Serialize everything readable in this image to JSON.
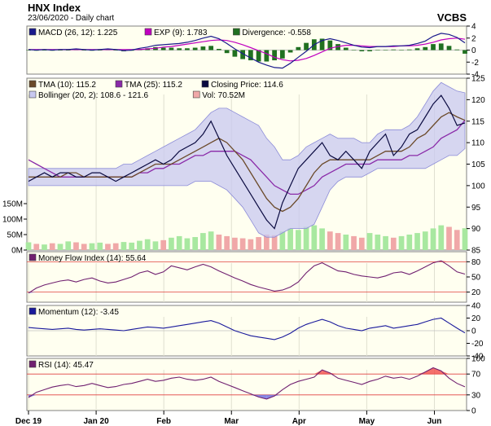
{
  "header": {
    "title": "HNX Index",
    "subtitle": "23/06/2020 - Daily chart",
    "vendor": "VCBS"
  },
  "colors": {
    "panel_bg": "#fffff0",
    "border": "#808080",
    "macd": "#1a1a8c",
    "exp": "#c000c0",
    "divergence": "#207020",
    "tma10": "#6b4a2a",
    "tma25": "#8a2aa8",
    "close": "#0a0a40",
    "bollinger_fill": "#c8c8f0",
    "bollinger_line": "#8c8cd8",
    "vol_up": "#a8e8a0",
    "vol_down": "#f0a8a8",
    "mfi": "#702070",
    "momentum": "#1a1a9c",
    "rsi": "#702070",
    "ref_line": "#e04040",
    "over_fill": "#f04040",
    "under_fill": "#6060e0"
  },
  "x_ticks": [
    "Dec 19",
    "Jan 20",
    "Feb",
    "Mar",
    "Apr",
    "May",
    "Jun"
  ],
  "chart_data": [
    {
      "type": "line",
      "name": "macd",
      "legend": [
        {
          "label": "MACD (26, 12): 1.225",
          "color": "#1a1a8c"
        },
        {
          "label": "EXP (9): 1.783",
          "color": "#c000c0"
        },
        {
          "label": "Divergence: -0.558",
          "color": "#207020"
        }
      ],
      "y_ticks": [
        "4",
        "2",
        "0",
        "-2",
        "-4"
      ],
      "ylim": [
        -4,
        4
      ],
      "series": [
        {
          "name": "MACD",
          "values": [
            0.1,
            0,
            0.1,
            0,
            0.1,
            0.1,
            0.2,
            0.1,
            0,
            0.1,
            0.2,
            0.1,
            -0.1,
            0,
            0.3,
            0.5,
            0.8,
            0.9,
            1,
            1.1,
            1.3,
            1.6,
            2,
            2.3,
            1.9,
            1.1,
            0.2,
            -0.6,
            -1.3,
            -2,
            -2.5,
            -2.9,
            -3,
            -2.2,
            -1.2,
            -0.2,
            0.9,
            1.6,
            1.9,
            1.6,
            1.2,
            0.8,
            0.5,
            0.4,
            0.6,
            0.6,
            0.7,
            0.7,
            0.8,
            1.1,
            1.5,
            2.3,
            2.8,
            2.6,
            2.1,
            1.2
          ]
        },
        {
          "name": "EXP",
          "values": [
            0.1,
            0.1,
            0.1,
            0.1,
            0.1,
            0.1,
            0.1,
            0.1,
            0.1,
            0.1,
            0.1,
            0.1,
            0.1,
            0.1,
            0.1,
            0.2,
            0.3,
            0.5,
            0.6,
            0.8,
            1,
            1.2,
            1.4,
            1.6,
            1.7,
            1.6,
            1.3,
            0.9,
            0.4,
            -0.1,
            -0.6,
            -1.2,
            -1.6,
            -1.8,
            -1.7,
            -1.4,
            -0.9,
            -0.3,
            0.3,
            0.6,
            0.8,
            0.8,
            0.7,
            0.6,
            0.6,
            0.6,
            0.6,
            0.7,
            0.7,
            0.8,
            1,
            1.3,
            1.7,
            1.9,
            2,
            1.8
          ]
        }
      ],
      "divergence": [
        0,
        -0.1,
        0,
        -0.1,
        0,
        0,
        0.1,
        0,
        -0.1,
        0,
        0.1,
        0,
        -0.2,
        -0.1,
        0.2,
        0.3,
        0.5,
        0.4,
        0.4,
        0.3,
        0.3,
        0.4,
        0.6,
        0.7,
        0.2,
        -0.5,
        -1.1,
        -1.5,
        -1.7,
        -1.9,
        -1.9,
        -1.7,
        -1.4,
        -0.4,
        0.5,
        1.2,
        1.8,
        1.9,
        1.6,
        1,
        0.4,
        0,
        -0.2,
        -0.2,
        0,
        0,
        0.1,
        0,
        0.1,
        0.3,
        0.5,
        1,
        1.1,
        0.7,
        0.1,
        -0.6
      ]
    },
    {
      "type": "line",
      "name": "price",
      "legend": [
        {
          "label": "TMA (10): 115.2",
          "color": "#6b4a2a"
        },
        {
          "label": "TMA (25): 115.2",
          "color": "#8a2aa8"
        },
        {
          "label": "Closing Price: 114.6",
          "color": "#0a0a40"
        },
        {
          "label": "Bollinger (20, 2): 108.6 - 121.6",
          "color": "#c8c8f0"
        },
        {
          "label": "Vol: 70.52M",
          "color": "#f0a8a8"
        }
      ],
      "y_ticks": [
        "125",
        "120",
        "115",
        "110",
        "105",
        "100",
        "95",
        "90",
        "85"
      ],
      "ylim": [
        85,
        125
      ],
      "vol_ticks": [
        "150M",
        "100M",
        "50M",
        "0M"
      ],
      "vol_max": 150,
      "series": [
        {
          "name": "Close",
          "values": [
            101,
            102,
            103,
            102,
            103,
            103,
            102,
            102,
            103,
            103,
            102,
            101,
            102,
            103,
            104,
            105,
            106,
            105,
            106,
            108,
            109,
            110,
            112,
            115,
            111,
            107,
            104,
            101,
            98,
            95,
            92,
            90,
            96,
            100,
            104,
            106,
            108,
            110,
            107,
            106,
            108,
            106,
            104,
            108,
            110,
            112,
            107,
            109,
            112,
            113,
            116,
            119,
            121,
            118,
            114,
            114.6
          ]
        },
        {
          "name": "TMA10",
          "values": [
            102,
            102,
            102,
            102,
            102,
            103,
            103,
            102,
            102,
            102,
            102,
            102,
            102,
            102,
            103,
            104,
            105,
            105,
            105,
            106,
            107,
            108,
            109,
            110,
            111,
            110,
            108,
            106,
            103,
            100,
            97,
            95,
            94,
            95,
            97,
            100,
            103,
            105,
            106,
            106,
            106,
            106,
            106,
            106,
            107,
            108,
            108,
            108,
            109,
            111,
            112,
            114,
            116,
            117,
            116,
            115.2
          ]
        },
        {
          "name": "TMA25",
          "values": [
            106,
            105,
            104,
            103,
            102,
            102,
            102,
            102,
            102,
            102,
            102,
            102,
            102,
            102,
            103,
            103,
            104,
            104,
            105,
            105,
            106,
            107,
            107,
            108,
            108,
            108,
            108,
            107,
            106,
            104,
            102,
            100,
            99,
            98,
            98,
            99,
            100,
            102,
            103,
            104,
            105,
            105,
            105,
            105,
            106,
            106,
            106,
            106,
            107,
            107,
            108,
            109,
            111,
            112,
            113,
            115.2
          ]
        },
        {
          "name": "BollUpper",
          "values": [
            104,
            104,
            104,
            104,
            104,
            104,
            104,
            104,
            104,
            104,
            104,
            104,
            105,
            105,
            106,
            107,
            108,
            109,
            110,
            111,
            112,
            113,
            115,
            117,
            118,
            118,
            117,
            116,
            115,
            114,
            111,
            109,
            106,
            106,
            107,
            109,
            110,
            111,
            112,
            111,
            111,
            111,
            110,
            110,
            112,
            113,
            113,
            113,
            114,
            116,
            119,
            122,
            124,
            123,
            122,
            121.6
          ]
        },
        {
          "name": "BollLower",
          "values": [
            100,
            100,
            100,
            100,
            100,
            100,
            100,
            100,
            100,
            100,
            100,
            100,
            100,
            100,
            100,
            100,
            100,
            100,
            100,
            100,
            100,
            101,
            101,
            101,
            100,
            99,
            97,
            95,
            92,
            89,
            88,
            88,
            89,
            90,
            90,
            90,
            91,
            95,
            99,
            101,
            102,
            102,
            102,
            103,
            104,
            104,
            104,
            104,
            104,
            104,
            104,
            105,
            106,
            107,
            107,
            108.6
          ]
        }
      ],
      "volume": [
        25,
        20,
        18,
        22,
        20,
        28,
        25,
        20,
        22,
        24,
        20,
        22,
        26,
        24,
        30,
        35,
        28,
        32,
        40,
        45,
        38,
        42,
        55,
        60,
        50,
        45,
        40,
        38,
        35,
        42,
        50,
        48,
        60,
        70,
        65,
        75,
        80,
        70,
        60,
        55,
        50,
        45,
        40,
        55,
        50,
        45,
        40,
        45,
        50,
        55,
        60,
        70,
        80,
        75,
        65,
        70.52
      ],
      "volume_up": [
        1,
        0,
        1,
        0,
        1,
        1,
        0,
        0,
        1,
        1,
        0,
        0,
        1,
        1,
        1,
        1,
        1,
        0,
        1,
        1,
        1,
        1,
        1,
        1,
        0,
        0,
        0,
        0,
        0,
        0,
        0,
        0,
        1,
        1,
        1,
        1,
        1,
        1,
        0,
        0,
        1,
        0,
        0,
        1,
        1,
        1,
        0,
        1,
        1,
        1,
        1,
        1,
        1,
        0,
        0,
        1
      ]
    },
    {
      "type": "line",
      "name": "mfi",
      "legend": [
        {
          "label": "Money Flow Index (14): 55.64",
          "color": "#702070"
        }
      ],
      "y_ticks": [
        "80",
        "50",
        "20"
      ],
      "ylim": [
        0,
        100
      ],
      "ref_lines": [
        80,
        20
      ],
      "values": [
        18,
        28,
        34,
        38,
        42,
        44,
        40,
        45,
        48,
        42,
        38,
        40,
        45,
        50,
        58,
        62,
        55,
        60,
        72,
        68,
        64,
        70,
        75,
        70,
        62,
        55,
        48,
        42,
        35,
        30,
        26,
        22,
        24,
        30,
        40,
        58,
        72,
        78,
        70,
        62,
        60,
        55,
        52,
        50,
        48,
        52,
        58,
        60,
        55,
        62,
        70,
        78,
        82,
        72,
        60,
        55.64
      ]
    },
    {
      "type": "line",
      "name": "momentum",
      "legend": [
        {
          "label": "Momentum (12): -3.45",
          "color": "#1a1a9c"
        }
      ],
      "y_ticks": [
        "40",
        "20",
        "0",
        "-20",
        "-40"
      ],
      "ylim": [
        -40,
        40
      ],
      "values": [
        5,
        4,
        3,
        2,
        3,
        4,
        2,
        1,
        2,
        3,
        2,
        1,
        0,
        2,
        4,
        6,
        5,
        4,
        6,
        8,
        10,
        12,
        14,
        16,
        12,
        6,
        0,
        -4,
        -8,
        -10,
        -12,
        -14,
        -10,
        -4,
        4,
        10,
        14,
        18,
        14,
        8,
        4,
        2,
        0,
        4,
        6,
        8,
        4,
        6,
        8,
        10,
        14,
        18,
        20,
        12,
        4,
        -3.45
      ]
    },
    {
      "type": "line",
      "name": "rsi",
      "legend": [
        {
          "label": "RSI (14): 45.47",
          "color": "#702070"
        }
      ],
      "y_ticks": [
        "100",
        "70",
        "30",
        "0"
      ],
      "ylim": [
        0,
        100
      ],
      "ref_lines": [
        70,
        30
      ],
      "values": [
        25,
        35,
        40,
        45,
        48,
        50,
        46,
        48,
        52,
        48,
        44,
        46,
        50,
        52,
        56,
        60,
        56,
        58,
        62,
        64,
        60,
        58,
        60,
        64,
        56,
        50,
        44,
        38,
        32,
        26,
        22,
        28,
        40,
        50,
        56,
        60,
        64,
        78,
        72,
        62,
        58,
        54,
        50,
        56,
        60,
        66,
        62,
        64,
        60,
        66,
        74,
        82,
        76,
        62,
        52,
        45.47
      ]
    }
  ]
}
